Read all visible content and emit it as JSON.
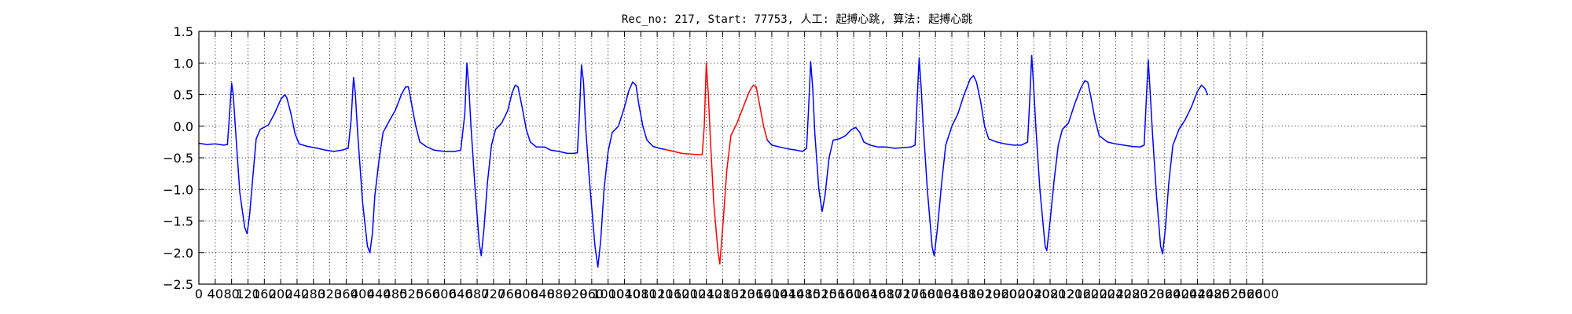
{
  "chart_data": {
    "type": "line",
    "title": "Rec_no: 217, Start: 77753, 人工: 起搏心跳, 算法: 起搏心跳",
    "xlabel": "",
    "ylabel": "",
    "xlim": [
      0,
      3000
    ],
    "ylim": [
      -2.5,
      1.5
    ],
    "grid": true,
    "grid_style": "dotted",
    "x_tick_labels": [
      "0",
      "40",
      "80",
      "120",
      "160",
      "200",
      "240",
      "280",
      "320",
      "360",
      "400",
      "440",
      "480",
      "520",
      "560",
      "600",
      "640",
      "680",
      "720",
      "760",
      "800",
      "840",
      "880",
      "920",
      "960",
      "1000",
      "1040",
      "1080",
      "1120",
      "1160",
      "1200",
      "1240",
      "1280",
      "1320",
      "1360",
      "1400",
      "1440",
      "1480",
      "1520",
      "1560",
      "1600",
      "1640",
      "1680",
      "1720",
      "1760",
      "1800",
      "1840",
      "1880",
      "1920",
      "1960",
      "2000",
      "2040",
      "2080",
      "2120",
      "2160",
      "2200",
      "2240",
      "2280",
      "2320",
      "2360",
      "2400",
      "2440",
      "2480",
      "2520",
      "2560",
      "2600"
    ],
    "y_tick_labels": [
      "1.5",
      "1.0",
      "0.5",
      "0.0",
      "−0.5",
      "−1.0",
      "−1.5",
      "−2.0",
      "−2.5"
    ],
    "x_ticks": [
      0,
      40,
      80,
      120,
      160,
      200,
      240,
      280,
      320,
      360,
      400,
      440,
      480,
      520,
      560,
      600,
      640,
      680,
      720,
      760,
      800,
      840,
      880,
      920,
      960,
      1000,
      1040,
      1080,
      1120,
      1160,
      1200,
      1240,
      1280,
      1320,
      1360,
      1400,
      1440,
      1480,
      1520,
      1560,
      1600,
      1640,
      1680,
      1720,
      1760,
      1800,
      1840,
      1880,
      1920,
      1960,
      2000,
      2040,
      2080,
      2120,
      2160,
      2200,
      2240,
      2280,
      2320,
      2360,
      2400,
      2440,
      2480,
      2520,
      2560,
      2600
    ],
    "y_ticks": [
      1.5,
      1.0,
      0.5,
      0.0,
      -0.5,
      -1.0,
      -1.5,
      -2.0,
      -2.5
    ],
    "series": [
      {
        "color": "#0000ff",
        "points": [
          [
            0,
            -0.27
          ],
          [
            20,
            -0.29
          ],
          [
            40,
            -0.28
          ],
          [
            60,
            -0.3
          ],
          [
            70,
            -0.29
          ],
          [
            80,
            0.68
          ],
          [
            84,
            0.5
          ],
          [
            90,
            -0.1
          ],
          [
            100,
            -1.05
          ],
          [
            112,
            -1.6
          ],
          [
            118,
            -1.7
          ],
          [
            124,
            -1.4
          ],
          [
            132,
            -0.8
          ],
          [
            140,
            -0.2
          ],
          [
            150,
            -0.05
          ],
          [
            170,
            0.02
          ],
          [
            185,
            0.2
          ],
          [
            200,
            0.42
          ],
          [
            210,
            0.5
          ],
          [
            215,
            0.45
          ],
          [
            225,
            0.2
          ],
          [
            235,
            -0.12
          ],
          [
            245,
            -0.28
          ],
          [
            265,
            -0.32
          ],
          [
            290,
            -0.35
          ],
          [
            310,
            -0.38
          ],
          [
            330,
            -0.4
          ],
          [
            350,
            -0.38
          ],
          [
            365,
            -0.35
          ],
          [
            372,
            0.1
          ],
          [
            378,
            0.77
          ],
          [
            382,
            0.55
          ],
          [
            388,
            -0.1
          ],
          [
            400,
            -1.2
          ],
          [
            412,
            -1.9
          ],
          [
            418,
            -2.0
          ],
          [
            424,
            -1.7
          ],
          [
            430,
            -1.1
          ],
          [
            440,
            -0.55
          ],
          [
            450,
            -0.1
          ],
          [
            465,
            0.08
          ],
          [
            480,
            0.25
          ],
          [
            495,
            0.5
          ],
          [
            505,
            0.62
          ],
          [
            512,
            0.62
          ],
          [
            520,
            0.35
          ],
          [
            530,
            0.0
          ],
          [
            540,
            -0.25
          ],
          [
            555,
            -0.32
          ],
          [
            575,
            -0.38
          ],
          [
            600,
            -0.4
          ],
          [
            625,
            -0.4
          ],
          [
            640,
            -0.38
          ],
          [
            650,
            0.2
          ],
          [
            655,
            1.0
          ],
          [
            660,
            0.6
          ],
          [
            665,
            0.0
          ],
          [
            675,
            -1.0
          ],
          [
            685,
            -1.85
          ],
          [
            690,
            -2.05
          ],
          [
            697,
            -1.6
          ],
          [
            705,
            -0.9
          ],
          [
            715,
            -0.3
          ],
          [
            725,
            -0.05
          ],
          [
            740,
            0.05
          ],
          [
            755,
            0.25
          ],
          [
            765,
            0.52
          ],
          [
            773,
            0.65
          ],
          [
            780,
            0.62
          ],
          [
            790,
            0.3
          ],
          [
            800,
            -0.05
          ],
          [
            810,
            -0.25
          ],
          [
            825,
            -0.33
          ],
          [
            845,
            -0.33
          ],
          [
            860,
            -0.38
          ],
          [
            880,
            -0.4
          ],
          [
            900,
            -0.43
          ],
          [
            915,
            -0.43
          ],
          [
            925,
            -0.42
          ],
          [
            930,
            0.2
          ],
          [
            935,
            0.97
          ],
          [
            940,
            0.7
          ],
          [
            945,
            0.0
          ],
          [
            955,
            -0.9
          ],
          [
            968,
            -1.9
          ],
          [
            975,
            -2.23
          ],
          [
            982,
            -1.8
          ],
          [
            990,
            -1.0
          ],
          [
            1000,
            -0.4
          ],
          [
            1010,
            -0.1
          ],
          [
            1025,
            0.0
          ],
          [
            1040,
            0.3
          ],
          [
            1050,
            0.55
          ],
          [
            1060,
            0.7
          ],
          [
            1068,
            0.65
          ],
          [
            1075,
            0.35
          ],
          [
            1085,
            0.0
          ],
          [
            1095,
            -0.22
          ],
          [
            1110,
            -0.32
          ],
          [
            1125,
            -0.35
          ],
          [
            1140,
            -0.37
          ]
        ]
      },
      {
        "color": "#ff0000",
        "points": [
          [
            1140,
            -0.37
          ],
          [
            1160,
            -0.4
          ],
          [
            1180,
            -0.43
          ],
          [
            1200,
            -0.44
          ],
          [
            1220,
            -0.45
          ],
          [
            1230,
            -0.45
          ],
          [
            1235,
            0.0
          ],
          [
            1240,
            1.0
          ],
          [
            1245,
            0.5
          ],
          [
            1250,
            -0.2
          ],
          [
            1258,
            -1.2
          ],
          [
            1268,
            -1.95
          ],
          [
            1273,
            -2.18
          ],
          [
            1280,
            -1.6
          ],
          [
            1290,
            -0.7
          ],
          [
            1300,
            -0.15
          ],
          [
            1315,
            0.05
          ],
          [
            1330,
            0.3
          ],
          [
            1345,
            0.55
          ],
          [
            1355,
            0.65
          ],
          [
            1362,
            0.62
          ],
          [
            1370,
            0.35
          ],
          [
            1380,
            0.0
          ],
          [
            1389,
            -0.22
          ]
        ]
      },
      {
        "color": "#0000ff",
        "points": [
          [
            1389,
            -0.22
          ],
          [
            1400,
            -0.3
          ],
          [
            1420,
            -0.33
          ],
          [
            1440,
            -0.36
          ],
          [
            1460,
            -0.38
          ],
          [
            1475,
            -0.4
          ],
          [
            1485,
            -0.35
          ],
          [
            1490,
            0.3
          ],
          [
            1495,
            1.02
          ],
          [
            1500,
            0.6
          ],
          [
            1505,
            -0.1
          ],
          [
            1515,
            -1.0
          ],
          [
            1523,
            -1.35
          ],
          [
            1530,
            -1.1
          ],
          [
            1540,
            -0.5
          ],
          [
            1550,
            -0.22
          ],
          [
            1565,
            -0.2
          ],
          [
            1580,
            -0.15
          ],
          [
            1595,
            -0.05
          ],
          [
            1605,
            -0.02
          ],
          [
            1615,
            -0.1
          ],
          [
            1625,
            -0.25
          ],
          [
            1640,
            -0.3
          ],
          [
            1660,
            -0.33
          ],
          [
            1680,
            -0.33
          ],
          [
            1700,
            -0.35
          ],
          [
            1720,
            -0.34
          ],
          [
            1740,
            -0.33
          ],
          [
            1750,
            -0.3
          ],
          [
            1755,
            0.4
          ],
          [
            1760,
            1.08
          ],
          [
            1765,
            0.6
          ],
          [
            1770,
            0.0
          ],
          [
            1780,
            -1.0
          ],
          [
            1792,
            -1.92
          ],
          [
            1797,
            -2.05
          ],
          [
            1805,
            -1.6
          ],
          [
            1815,
            -0.9
          ],
          [
            1825,
            -0.3
          ],
          [
            1840,
            0.0
          ],
          [
            1855,
            0.2
          ],
          [
            1870,
            0.5
          ],
          [
            1885,
            0.75
          ],
          [
            1893,
            0.8
          ],
          [
            1900,
            0.7
          ],
          [
            1910,
            0.4
          ],
          [
            1920,
            0.0
          ],
          [
            1930,
            -0.2
          ],
          [
            1950,
            -0.25
          ],
          [
            1970,
            -0.28
          ],
          [
            1990,
            -0.3
          ],
          [
            2010,
            -0.3
          ],
          [
            2025,
            -0.25
          ],
          [
            2030,
            0.4
          ],
          [
            2035,
            1.12
          ],
          [
            2040,
            0.6
          ],
          [
            2045,
            0.0
          ],
          [
            2055,
            -1.0
          ],
          [
            2068,
            -1.9
          ],
          [
            2072,
            -1.97
          ],
          [
            2080,
            -1.5
          ],
          [
            2090,
            -0.85
          ],
          [
            2100,
            -0.3
          ],
          [
            2110,
            -0.05
          ],
          [
            2125,
            0.05
          ],
          [
            2140,
            0.35
          ],
          [
            2155,
            0.6
          ],
          [
            2165,
            0.72
          ],
          [
            2172,
            0.7
          ],
          [
            2180,
            0.45
          ],
          [
            2190,
            0.1
          ],
          [
            2200,
            -0.15
          ],
          [
            2220,
            -0.25
          ],
          [
            2240,
            -0.28
          ],
          [
            2260,
            -0.3
          ],
          [
            2280,
            -0.32
          ],
          [
            2300,
            -0.33
          ],
          [
            2310,
            -0.3
          ],
          [
            2315,
            0.4
          ],
          [
            2320,
            1.05
          ],
          [
            2325,
            0.5
          ],
          [
            2330,
            -0.1
          ],
          [
            2340,
            -1.1
          ],
          [
            2350,
            -1.9
          ],
          [
            2355,
            -2.02
          ],
          [
            2362,
            -1.6
          ],
          [
            2370,
            -0.9
          ],
          [
            2380,
            -0.3
          ],
          [
            2395,
            -0.05
          ],
          [
            2410,
            0.1
          ],
          [
            2425,
            0.3
          ],
          [
            2440,
            0.55
          ],
          [
            2450,
            0.65
          ],
          [
            2458,
            0.6
          ],
          [
            2465,
            0.5
          ]
        ]
      }
    ]
  }
}
